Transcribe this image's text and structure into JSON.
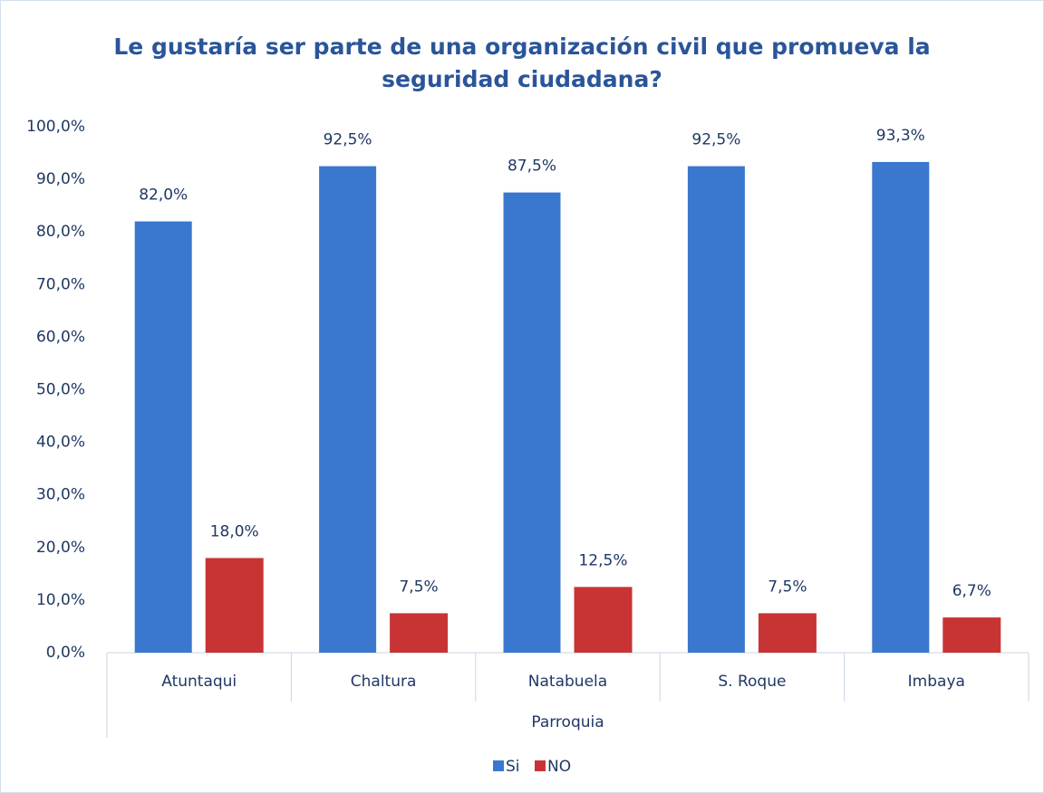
{
  "chart_data": {
    "type": "bar",
    "title": "Le gustaría ser parte de una organización civil que promueva la seguridad ciudadana?",
    "x_label": "Parroquia",
    "categories": [
      "Atuntaqui",
      "Chaltura",
      "Natabuela",
      "S. Roque",
      "Imbaya"
    ],
    "series": [
      {
        "name": "Si",
        "color": "#3a78cf",
        "values": [
          82.0,
          92.5,
          87.5,
          92.5,
          93.3
        ],
        "value_labels": [
          "82,0%",
          "92,5%",
          "87,5%",
          "92,5%",
          "93,3%"
        ]
      },
      {
        "name": "NO",
        "color": "#c83434",
        "values": [
          18.0,
          7.5,
          12.5,
          7.5,
          6.7
        ],
        "value_labels": [
          "18,0%",
          "7,5%",
          "12,5%",
          "7,5%",
          "6,7%"
        ]
      }
    ],
    "ylim": [
      0,
      100
    ],
    "yticks": [
      {
        "value": 0,
        "label": "0,0%"
      },
      {
        "value": 10,
        "label": "10,0%"
      },
      {
        "value": 20,
        "label": "20,0%"
      },
      {
        "value": 30,
        "label": "30,0%"
      },
      {
        "value": 40,
        "label": "40,0%"
      },
      {
        "value": 50,
        "label": "50,0%"
      },
      {
        "value": 60,
        "label": "60,0%"
      },
      {
        "value": 70,
        "label": "70,0%"
      },
      {
        "value": 80,
        "label": "80,0%"
      },
      {
        "value": 90,
        "label": "90,0%"
      },
      {
        "value": 100,
        "label": "100,0%"
      }
    ],
    "grid": false,
    "legend": "bottom"
  }
}
